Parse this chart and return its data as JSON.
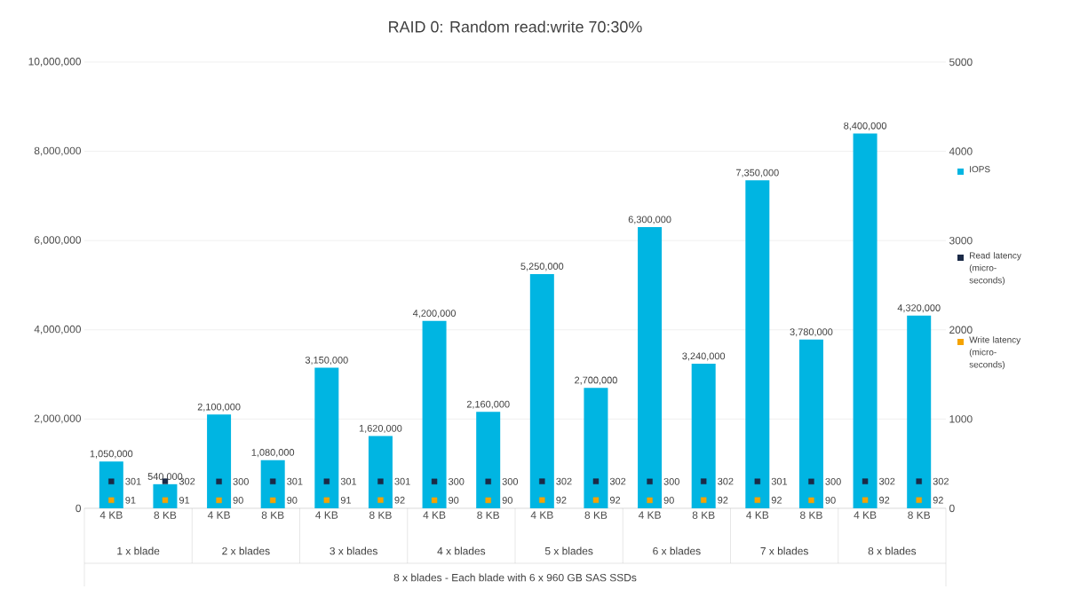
{
  "chart_data": {
    "type": "bar",
    "title": "RAID 0: Random read:write 70:30%",
    "categories": [
      "4 KB",
      "8 KB",
      "4 KB",
      "8 KB",
      "4 KB",
      "8 KB",
      "4 KB",
      "8 KB",
      "4 KB",
      "8 KB",
      "4 KB",
      "8 KB",
      "4 KB",
      "8 KB",
      "4 KB",
      "8 KB"
    ],
    "annotations": [
      "8 x blades - Each blade with 6 x 960 GB SAS SSDs",
      "1 x blade",
      "2 x blades",
      "3 x blades",
      "4 x blades",
      "5 x blades",
      "6 x blades",
      "7 x blades",
      "8 x blades"
    ],
    "series": [
      {
        "name": "IOPS",
        "color": "#00b5e2",
        "values": [
          1050000,
          540000,
          2100000,
          1080000,
          3150000,
          1620000,
          4200000,
          2160000,
          5250000,
          2700000,
          6300000,
          3240000,
          7350000,
          3780000,
          8400000,
          4320000
        ],
        "value_labels": [
          "1,050,000",
          "540,000",
          "2,100,000",
          "1,080,000",
          "3,150,000",
          "1,620,000",
          "4,200,000",
          "2,160,000",
          "5,250,000",
          "2,700,000",
          "6,300,000",
          "3,240,000",
          "7,350,000",
          "3,780,000",
          "8,400,000",
          "4,320,000"
        ]
      },
      {
        "name": "Read latency (micro-seconds)",
        "type": "scatter",
        "axis": "y2",
        "marker": "square",
        "color": "#1b2a47",
        "values": [
          301,
          302,
          300,
          301,
          301,
          301,
          300,
          300,
          302,
          302,
          300,
          302,
          301,
          300,
          302,
          302
        ],
        "value_labels": [
          "301",
          "302",
          "300",
          "301",
          "301",
          "301",
          "300",
          "300",
          "302",
          "302",
          "300",
          "302",
          "301",
          "300",
          "302",
          "302"
        ]
      },
      {
        "name": "Write latency (micro-seconds)",
        "type": "scatter",
        "axis": "y2",
        "marker": "square",
        "color": "#f5a300",
        "values": [
          91,
          91,
          90,
          90,
          91,
          92,
          90,
          90,
          92,
          92,
          90,
          92,
          92,
          90,
          92,
          92
        ],
        "value_labels": [
          "91",
          "91",
          "90",
          "90",
          "91",
          "92",
          "90",
          "90",
          "92",
          "92",
          "90",
          "92",
          "92",
          "90",
          "92",
          "92"
        ]
      }
    ],
    "ylim": [
      0,
      10000000
    ],
    "yticks": [
      {
        "value": 0,
        "label": "0"
      },
      {
        "value": 2000000,
        "label": "2,000,000"
      },
      {
        "value": 4000000,
        "label": "4,000,000"
      },
      {
        "value": 6000000,
        "label": "6,000,000"
      },
      {
        "value": 8000000,
        "label": "8,000,000"
      },
      {
        "value": 10000000,
        "label": "10,000,000"
      }
    ],
    "y2lim": [
      0,
      5000
    ],
    "y2ticks": [
      0,
      1000,
      2000,
      3000,
      4000,
      5000
    ],
    "grid": "y",
    "legend": "right"
  }
}
